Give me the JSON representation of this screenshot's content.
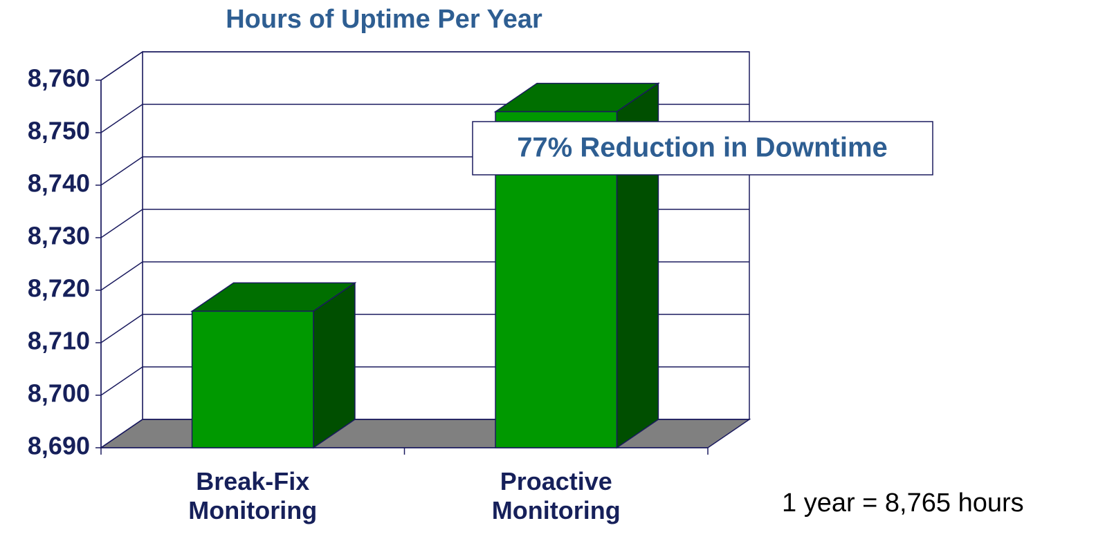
{
  "chart_data": {
    "type": "bar3d",
    "title": "Hours of Uptime Per Year",
    "categories": [
      "Break-Fix Monitoring",
      "Proactive Monitoring"
    ],
    "values": [
      8716,
      8754
    ],
    "color": "#009900",
    "ylim": [
      8690,
      8760
    ],
    "yticks": [
      {
        "value": 8690,
        "label": "8,690"
      },
      {
        "value": 8700,
        "label": "8,700"
      },
      {
        "value": 8710,
        "label": "8,710"
      },
      {
        "value": 8720,
        "label": "8,720"
      },
      {
        "value": 8730,
        "label": "8,730"
      },
      {
        "value": 8740,
        "label": "8,740"
      },
      {
        "value": 8750,
        "label": "8,750"
      },
      {
        "value": 8760,
        "label": "8,760"
      }
    ],
    "grid": true,
    "annotations": [
      "77% Reduction in Downtime",
      "1 year = 8,765 hours"
    ]
  }
}
